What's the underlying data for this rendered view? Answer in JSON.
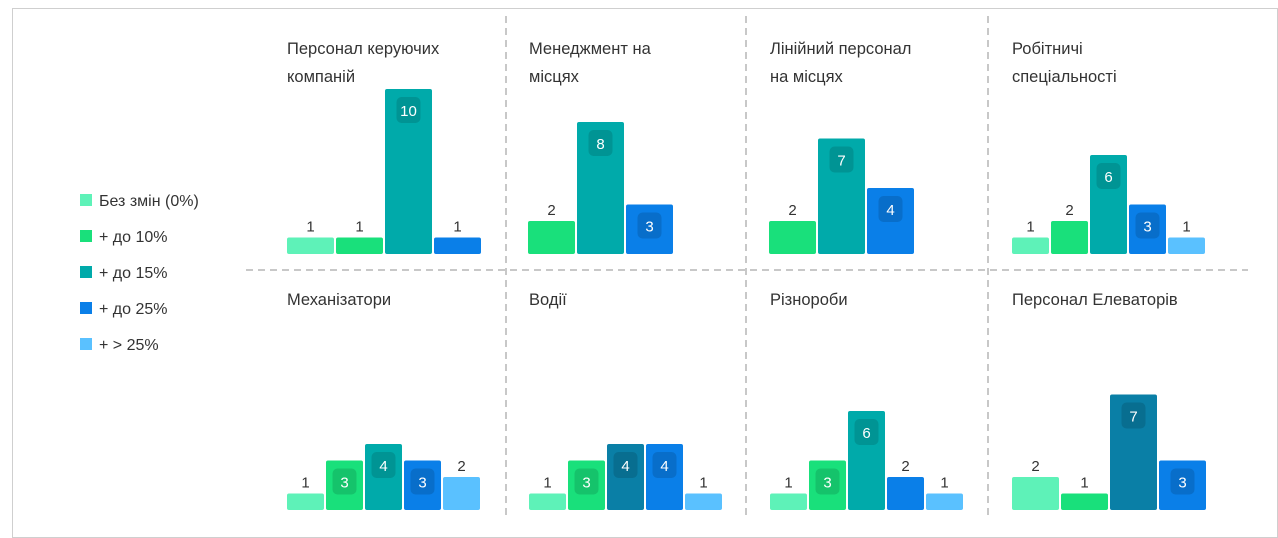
{
  "legend": {
    "items": [
      {
        "label": "Без змін (0%)",
        "color": "#5ef2b8"
      },
      {
        "label": "+ до 10%",
        "color": "#19e07b"
      },
      {
        "label": "+ до 15%",
        "color": "#00aaaa"
      },
      {
        "label": "+ до 25%",
        "color": "#0a7fe8"
      },
      {
        "label": "+ > 25%",
        "color": "#5ac1ff"
      }
    ]
  },
  "chart_data": [
    {
      "type": "bar",
      "title": "Персонал керуючих компаній",
      "title_lines": [
        "Персонал керуючих",
        "компаній"
      ],
      "bars": [
        {
          "category": "Без змін (0%)",
          "value": 1,
          "color": "#5ef2b8"
        },
        {
          "category": "+ до 10%",
          "value": 1,
          "color": "#19e07b"
        },
        {
          "category": "+ до 15%",
          "value": 10,
          "color": "#00aaaa"
        },
        {
          "category": "+ до 25%",
          "value": 1,
          "color": "#0a7fe8"
        }
      ]
    },
    {
      "type": "bar",
      "title": "Менеджмент на місцях",
      "title_lines": [
        "Менеджмент на",
        "місцях"
      ],
      "bars": [
        {
          "category": "+ до 10%",
          "value": 2,
          "color": "#19e07b"
        },
        {
          "category": "+ до 15%",
          "value": 8,
          "color": "#00aaaa"
        },
        {
          "category": "+ до 25%",
          "value": 3,
          "color": "#0a7fe8"
        }
      ]
    },
    {
      "type": "bar",
      "title": "Лінійний персонал на місцях",
      "title_lines": [
        "Лінійний персонал",
        "на місцях"
      ],
      "bars": [
        {
          "category": "+ до 10%",
          "value": 2,
          "color": "#19e07b"
        },
        {
          "category": "+ до 15%",
          "value": 7,
          "color": "#00aaaa"
        },
        {
          "category": "+ до 25%",
          "value": 4,
          "color": "#0a7fe8"
        }
      ]
    },
    {
      "type": "bar",
      "title": "Робітничі спеціальності",
      "title_lines": [
        "Робітничі",
        "спеціальності"
      ],
      "bars": [
        {
          "category": "Без змін (0%)",
          "value": 1,
          "color": "#5ef2b8"
        },
        {
          "category": "+ до 10%",
          "value": 2,
          "color": "#19e07b"
        },
        {
          "category": "+ до 15%",
          "value": 6,
          "color": "#00aaaa"
        },
        {
          "category": "+ до 25%",
          "value": 3,
          "color": "#0a7fe8"
        },
        {
          "category": "+ > 25%",
          "value": 1,
          "color": "#5ac1ff"
        }
      ]
    },
    {
      "type": "bar",
      "title": "Механізатори",
      "title_lines": [
        "Механізатори"
      ],
      "bars": [
        {
          "category": "Без змін (0%)",
          "value": 1,
          "color": "#5ef2b8"
        },
        {
          "category": "+ до 10%",
          "value": 3,
          "color": "#19e07b"
        },
        {
          "category": "+ до 15%",
          "value": 4,
          "color": "#00aaaa"
        },
        {
          "category": "+ до 25%",
          "value": 3,
          "color": "#0a7fe8"
        },
        {
          "category": "+ > 25%",
          "value": 2,
          "color": "#5ac1ff"
        }
      ]
    },
    {
      "type": "bar",
      "title": "Водії",
      "title_lines": [
        "Водії"
      ],
      "bars": [
        {
          "category": "Без змін (0%)",
          "value": 1,
          "color": "#5ef2b8"
        },
        {
          "category": "+ до 10%",
          "value": 3,
          "color": "#19e07b"
        },
        {
          "category": "+ до 15%",
          "value": 4,
          "color": "#0a7fa6"
        },
        {
          "category": "+ до 25%",
          "value": 4,
          "color": "#0a7fe8"
        },
        {
          "category": "+ > 25%",
          "value": 1,
          "color": "#5ac1ff"
        }
      ]
    },
    {
      "type": "bar",
      "title": "Різнороби",
      "title_lines": [
        "Різнороби"
      ],
      "bars": [
        {
          "category": "Без змін (0%)",
          "value": 1,
          "color": "#5ef2b8"
        },
        {
          "category": "+ до 10%",
          "value": 3,
          "color": "#19e07b"
        },
        {
          "category": "+ до 15%",
          "value": 6,
          "color": "#00aaaa"
        },
        {
          "category": "+ до 25%",
          "value": 2,
          "color": "#0a7fe8"
        },
        {
          "category": "+ > 25%",
          "value": 1,
          "color": "#5ac1ff"
        }
      ]
    },
    {
      "type": "bar",
      "title": "Персонал Елеваторів",
      "title_lines": [
        "Персонал Елеваторів"
      ],
      "bars": [
        {
          "category": "Без змін (0%)",
          "value": 2,
          "color": "#5ef2b8"
        },
        {
          "category": "+ до 10%",
          "value": 1,
          "color": "#19e07b"
        },
        {
          "category": "+ до 15%",
          "value": 7,
          "color": "#0a7fa6"
        },
        {
          "category": "+ до 25%",
          "value": 3,
          "color": "#0a7fe8"
        }
      ]
    }
  ]
}
